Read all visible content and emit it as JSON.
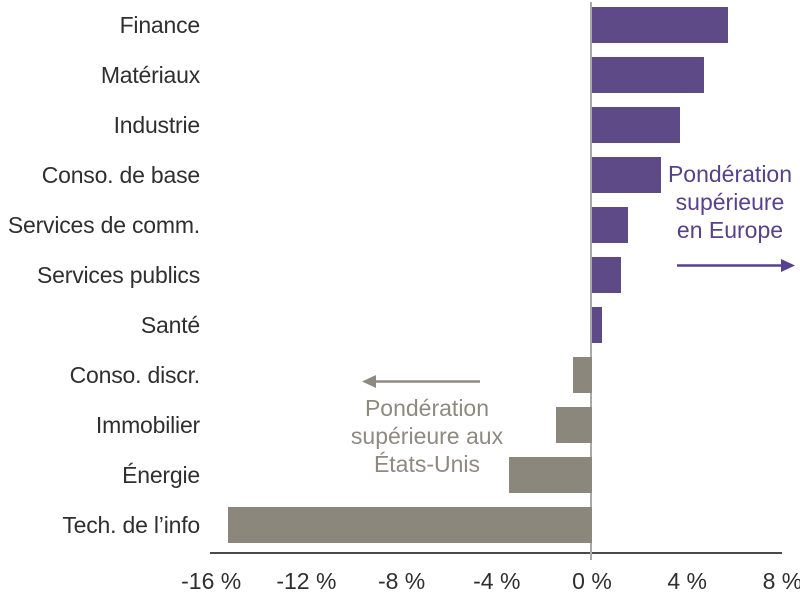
{
  "chart_data": {
    "type": "bar",
    "orientation": "horizontal",
    "title": "",
    "xlabel": "",
    "ylabel": "",
    "unit": "%",
    "categories": [
      "Finance",
      "Matériaux",
      "Industrie",
      "Conso. de base",
      "Services de comm.",
      "Services publics",
      "Santé",
      "Conso. discr.",
      "Immobilier",
      "Énergie",
      "Tech. de l’info"
    ],
    "values": [
      5.7,
      4.7,
      3.7,
      2.9,
      1.5,
      1.2,
      0.4,
      -0.8,
      -1.5,
      -3.5,
      -15.3
    ],
    "xlim": [
      -16.2,
      8.1
    ],
    "tick_values": [
      -16,
      -12,
      -8,
      -4,
      0,
      4,
      8
    ],
    "tick_labels": [
      "-16 %",
      "-12 %",
      "-8 %",
      "-4 %",
      "0 %",
      "4 %",
      "8 %"
    ],
    "grid": false,
    "legend": "none",
    "colors": {
      "positive_bar": "#5e4a87",
      "negative_bar": "#8b877d",
      "axis": "#4a4a4a",
      "zero_line": "#a9a9a9",
      "text": "#2f2f2f"
    },
    "annotations": [
      {
        "id": "europe",
        "lines": [
          "Pondération",
          "supérieure",
          "en Europe"
        ],
        "color": "#57418e",
        "arrow_direction": "right"
      },
      {
        "id": "us",
        "lines": [
          "Pondération",
          "supérieure aux",
          "États-Unis"
        ],
        "color": "#8e8a80",
        "arrow_direction": "left"
      }
    ]
  }
}
